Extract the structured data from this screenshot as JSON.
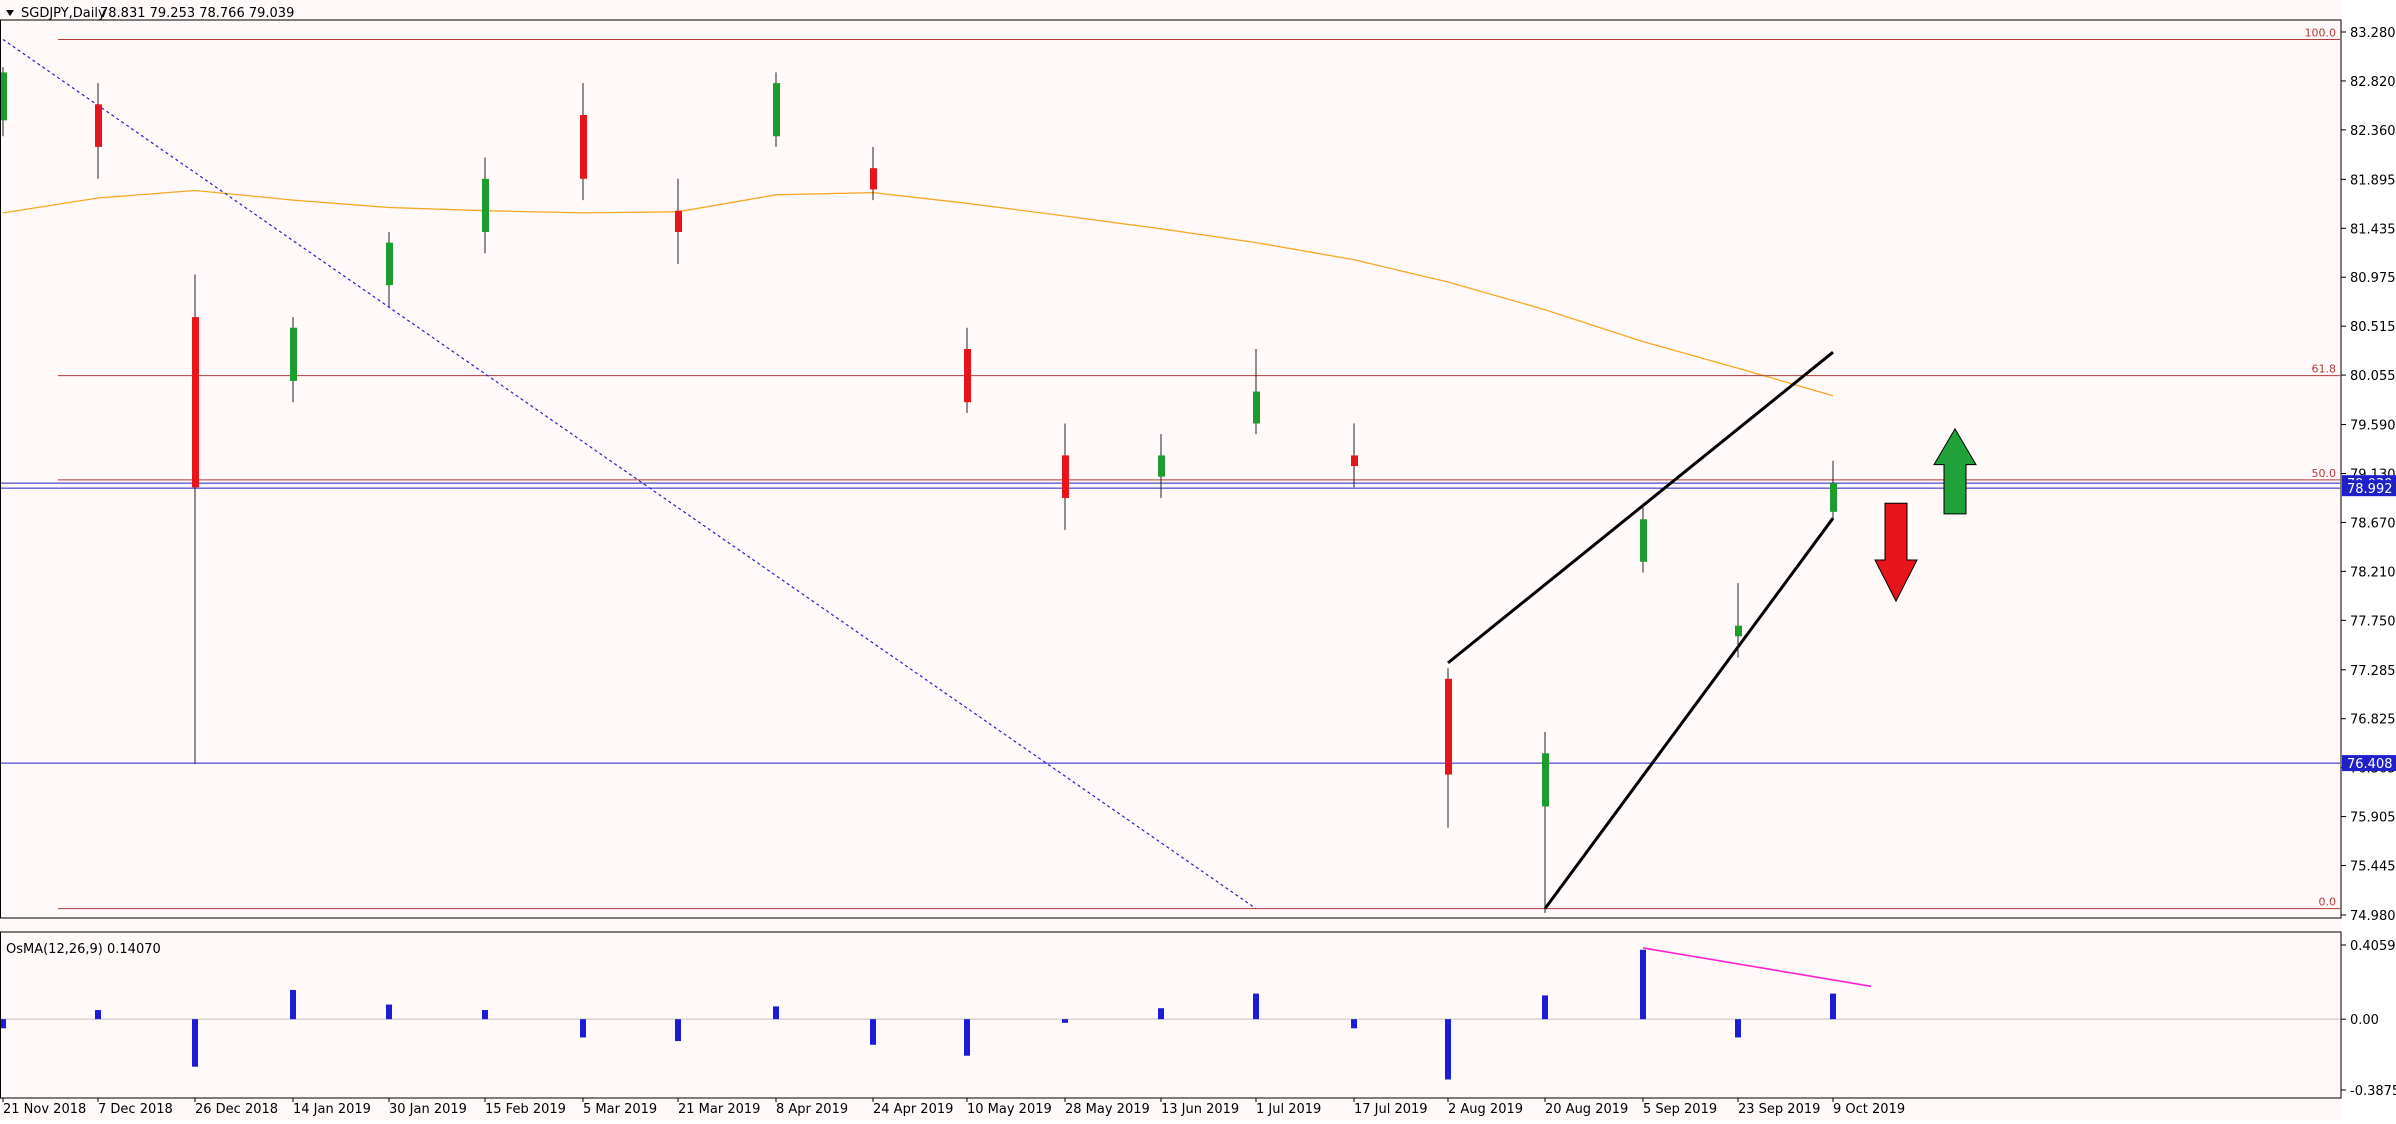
{
  "header": {
    "title": "SGDJPY,Daily",
    "ohlc": "78.831 79.253 78.766 79.039"
  },
  "indicator": {
    "title": "OsMA(12,26,9) 0.14070"
  },
  "colors": {
    "background": "#fff9f9",
    "bull": "#1d9d2e",
    "bear": "#e8141b",
    "wick": "#222222",
    "ma": "#f7a823",
    "fib": "#b33b3b",
    "hline": "#2020c8",
    "trendline": "#000000",
    "osma": "#1c1cd8",
    "divergence": "#ff22d4",
    "arrow_up": "#21a13a",
    "arrow_down": "#e8141b"
  },
  "chart_data": [
    {
      "type": "candlestick",
      "symbol": "SGDJPY",
      "timeframe": "Daily",
      "y_ticks": [
        "83.280",
        "82.820",
        "82.360",
        "81.895",
        "81.435",
        "80.975",
        "80.515",
        "80.055",
        "79.590",
        "79.130",
        "78.670",
        "78.210",
        "77.750",
        "77.285",
        "76.825",
        "76.365",
        "75.905",
        "75.445",
        "74.980"
      ],
      "ylim": [
        74.98,
        83.28
      ],
      "x_ticks": [
        "21 Nov 2018",
        "7 Dec 2018",
        "26 Dec 2018",
        "14 Jan 2019",
        "30 Jan 2019",
        "15 Feb 2019",
        "5 Mar 2019",
        "21 Mar 2019",
        "8 Apr 2019",
        "24 Apr 2019",
        "10 May 2019",
        "28 May 2019",
        "13 Jun 2019",
        "1 Jul 2019",
        "17 Jul 2019",
        "2 Aug 2019",
        "20 Aug 2019",
        "5 Sep 2019",
        "23 Sep 2019",
        "9 Oct 2019"
      ],
      "price_labels": [
        {
          "text": "79.039",
          "price": 79.039
        },
        {
          "text": "78.992",
          "price": 78.992
        },
        {
          "text": "76.408",
          "price": 76.408
        }
      ],
      "fibonacci": [
        {
          "label": "100.0",
          "price": 83.21
        },
        {
          "label": "61.8",
          "price": 80.05
        },
        {
          "label": "50.0",
          "price": 79.07
        },
        {
          "label": "0.0",
          "price": 75.04
        }
      ],
      "horizontal_lines": [
        79.039,
        78.992,
        76.408
      ],
      "moving_average": [
        {
          "date": "21 Nov 2018",
          "price": 81.58
        },
        {
          "date": "7 Dec 2018",
          "price": 81.72
        },
        {
          "date": "26 Dec 2018",
          "price": 81.79
        },
        {
          "date": "14 Jan 2019",
          "price": 81.7
        },
        {
          "date": "30 Jan 2019",
          "price": 81.63
        },
        {
          "date": "15 Feb 2019",
          "price": 81.6
        },
        {
          "date": "5 Mar 2019",
          "price": 81.58
        },
        {
          "date": "21 Mar 2019",
          "price": 81.59
        },
        {
          "date": "8 Apr 2019",
          "price": 81.75
        },
        {
          "date": "24 Apr 2019",
          "price": 81.77
        },
        {
          "date": "10 May 2019",
          "price": 81.67
        },
        {
          "date": "28 May 2019",
          "price": 81.55
        },
        {
          "date": "13 Jun 2019",
          "price": 81.43
        },
        {
          "date": "1 Jul 2019",
          "price": 81.3
        },
        {
          "date": "17 Jul 2019",
          "price": 81.14
        },
        {
          "date": "2 Aug 2019",
          "price": 80.93
        },
        {
          "date": "20 Aug 2019",
          "price": 80.67
        },
        {
          "date": "5 Sep 2019",
          "price": 80.37
        },
        {
          "date": "23 Sep 2019",
          "price": 80.12
        },
        {
          "date": "9 Oct 2019",
          "price": 79.86
        }
      ],
      "trend_lines": [
        {
          "name": "channel-upper",
          "from": {
            "date": "2 Aug 2019",
            "price": 77.35
          },
          "to": {
            "date": "9 Oct 2019",
            "price": 80.27
          }
        },
        {
          "name": "channel-lower",
          "from": {
            "date": "20 Aug 2019",
            "price": 75.04
          },
          "to": {
            "date": "9 Oct 2019",
            "price": 78.71
          }
        },
        {
          "name": "downtrend",
          "style": "dotted",
          "from": {
            "date": "21 Nov 2018",
            "price": 83.21
          },
          "to": {
            "date": "1 Jul 2019",
            "price": 75.04
          }
        }
      ],
      "annotations": [
        {
          "name": "up-arrow",
          "date": "9 Oct 2019",
          "price_range": [
            78.75,
            79.55
          ]
        },
        {
          "name": "down-arrow",
          "date": "9 Oct 2019",
          "price_range": [
            77.93,
            78.85
          ]
        }
      ],
      "candles": [
        {
          "date": "21 Nov 2018",
          "o": 82.45,
          "h": 82.95,
          "l": 82.3,
          "c": 82.9
        },
        {
          "date": "7 Dec 2018",
          "o": 82.6,
          "h": 82.8,
          "l": 81.9,
          "c": 82.2
        },
        {
          "date": "26 Dec 2018",
          "o": 80.6,
          "h": 81.0,
          "l": 76.4,
          "c": 79.0
        },
        {
          "date": "14 Jan 2019",
          "o": 80.0,
          "h": 80.6,
          "l": 79.8,
          "c": 80.5
        },
        {
          "date": "30 Jan 2019",
          "o": 80.9,
          "h": 81.4,
          "l": 80.7,
          "c": 81.3
        },
        {
          "date": "15 Feb 2019",
          "o": 81.4,
          "h": 82.1,
          "l": 81.2,
          "c": 81.9
        },
        {
          "date": "5 Mar 2019",
          "o": 82.5,
          "h": 82.8,
          "l": 81.7,
          "c": 81.9
        },
        {
          "date": "21 Mar 2019",
          "o": 81.6,
          "h": 81.9,
          "l": 81.1,
          "c": 81.4
        },
        {
          "date": "8 Apr 2019",
          "o": 82.3,
          "h": 82.9,
          "l": 82.2,
          "c": 82.8
        },
        {
          "date": "24 Apr 2019",
          "o": 82.0,
          "h": 82.2,
          "l": 81.7,
          "c": 81.8
        },
        {
          "date": "10 May 2019",
          "o": 80.3,
          "h": 80.5,
          "l": 79.7,
          "c": 79.8
        },
        {
          "date": "28 May 2019",
          "o": 79.3,
          "h": 79.6,
          "l": 78.6,
          "c": 78.9
        },
        {
          "date": "13 Jun 2019",
          "o": 79.1,
          "h": 79.5,
          "l": 78.9,
          "c": 79.3
        },
        {
          "date": "1 Jul 2019",
          "o": 79.6,
          "h": 80.3,
          "l": 79.5,
          "c": 79.9
        },
        {
          "date": "17 Jul 2019",
          "o": 79.3,
          "h": 79.6,
          "l": 79.0,
          "c": 79.2
        },
        {
          "date": "2 Aug 2019",
          "o": 77.2,
          "h": 77.3,
          "l": 75.8,
          "c": 76.3
        },
        {
          "date": "20 Aug 2019",
          "o": 76.0,
          "h": 76.7,
          "l": 75.0,
          "c": 76.5
        },
        {
          "date": "5 Sep 2019",
          "o": 78.3,
          "h": 78.85,
          "l": 78.2,
          "c": 78.7
        },
        {
          "date": "23 Sep 2019",
          "o": 77.6,
          "h": 78.1,
          "l": 77.4,
          "c": 77.7
        },
        {
          "date": "9 Oct 2019",
          "o": 78.77,
          "h": 79.25,
          "l": 78.7,
          "c": 79.04
        }
      ]
    },
    {
      "type": "bar",
      "name": "OsMA(12,26,9)",
      "y_ticks": [
        "0.40591",
        "0.00",
        "-0.38755"
      ],
      "ylim": [
        -0.38755,
        0.40591
      ],
      "current_value": 0.1407,
      "categories": [
        "21 Nov 2018",
        "7 Dec 2018",
        "26 Dec 2018",
        "14 Jan 2019",
        "30 Jan 2019",
        "15 Feb 2019",
        "5 Mar 2019",
        "21 Mar 2019",
        "8 Apr 2019",
        "24 Apr 2019",
        "10 May 2019",
        "28 May 2019",
        "13 Jun 2019",
        "1 Jul 2019",
        "17 Jul 2019",
        "2 Aug 2019",
        "20 Aug 2019",
        "5 Sep 2019",
        "23 Sep 2019",
        "9 Oct 2019"
      ],
      "values": [
        -0.05,
        0.05,
        -0.26,
        0.16,
        0.08,
        0.05,
        -0.1,
        -0.12,
        0.07,
        -0.14,
        -0.2,
        -0.02,
        0.06,
        0.14,
        -0.05,
        -0.33,
        0.13,
        0.38,
        -0.1,
        0.14
      ],
      "divergence_line": [
        {
          "date": "5 Sep 2019",
          "value": 0.39
        },
        {
          "date": "9 Oct 2019",
          "value": 0.18
        }
      ]
    }
  ]
}
